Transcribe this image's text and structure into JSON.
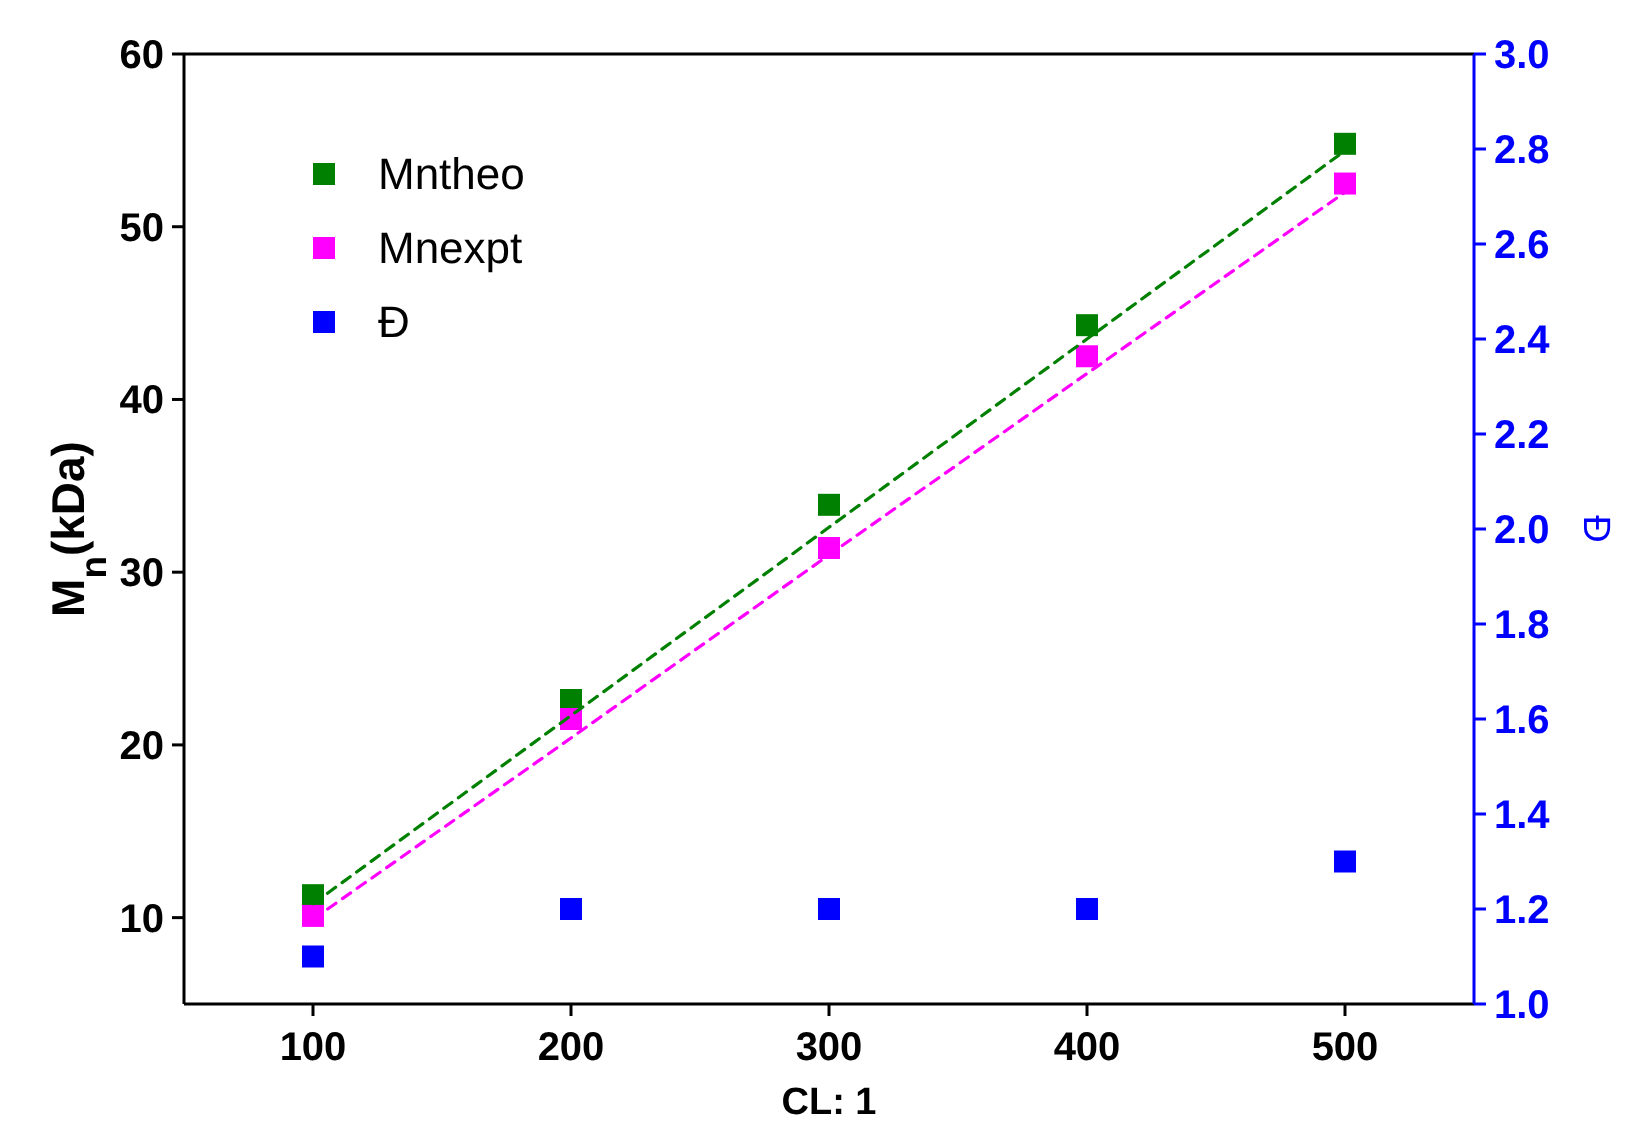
{
  "chart_data": {
    "type": "scatter",
    "xlabel": "CL: 1",
    "ylabel": "M$_{n}$(kDa)",
    "y2label": "Đ",
    "x": [
      100,
      200,
      300,
      400,
      500
    ],
    "xlim": [
      50,
      550
    ],
    "xticks": [
      100,
      200,
      300,
      400,
      500
    ],
    "ylim": [
      5,
      60
    ],
    "yticks": [
      10,
      20,
      30,
      40,
      50,
      60
    ],
    "y2lim": [
      1,
      3
    ],
    "y2ticks": [
      {
        "value": 1,
        "label": "1.0"
      },
      1.2,
      1.4,
      1.6,
      1.8,
      {
        "value": 2,
        "label": "2.0"
      },
      2.2,
      2.4,
      2.6,
      2.8,
      {
        "value": 3,
        "label": "3.0"
      }
    ],
    "legend": "top left",
    "grid": false,
    "marker": "square",
    "series": [
      {
        "name": "Mntheo",
        "color": "#008000",
        "values": [
          11.3,
          22.6,
          33.9,
          44.3,
          54.8
        ]
      },
      {
        "name": "Mnexpt",
        "color": "#ff00ff",
        "values": [
          10.1,
          21.5,
          31.4,
          42.5,
          52.5
        ]
      },
      {
        "name": "Đ",
        "color": "#0000ff",
        "axis": "y2",
        "values": [
          1.1,
          1.2,
          1.2,
          1.2,
          1.3
        ]
      },
      {
        "type": "line",
        "color": "#008000",
        "values": [
          10.8,
          21.7,
          32.6,
          43.5,
          54.4
        ],
        "line_style": "dashed",
        "marker": "none"
      },
      {
        "type": "line",
        "color": "#ff00ff",
        "values": [
          9.9,
          20.4,
          31.0,
          41.5,
          52.0
        ],
        "line_style": "dashed",
        "marker": "none"
      }
    ]
  }
}
